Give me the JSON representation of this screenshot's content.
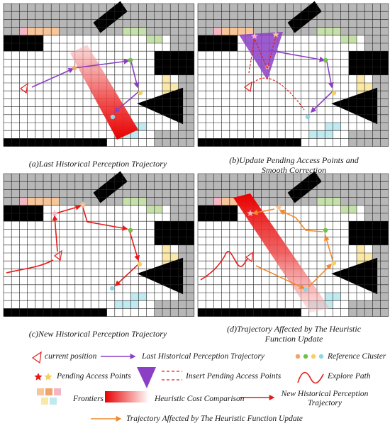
{
  "panels": [
    {
      "id": "a",
      "caption_line1": "(a)Last Historical Perception Trajectory",
      "caption_line2": ""
    },
    {
      "id": "b",
      "caption_line1": "(b)Update Pending Access Points and",
      "caption_line2": "Smooth Correction"
    },
    {
      "id": "c",
      "caption_line1": "(c)New Historical Perception Trajectory",
      "caption_line2": ""
    },
    {
      "id": "d",
      "caption_line1": "(d)Trajectory Affected by The Heuristic",
      "caption_line2": "Function Update"
    }
  ],
  "legend": {
    "current_position": "current position",
    "last_trajectory": "Last Historical Perception Trajectory",
    "reference_cluster": "Reference Cluster",
    "pending_access_points": "Pending Access Points",
    "insert_pending_access_points": "Insert Pending Access Points",
    "explore_path": "Explore Path",
    "frontiers": "Frontiers",
    "heuristic_cost": "Heuristic Cost Comparison",
    "new_trajectory_line1": "New Historical Perception",
    "new_trajectory_line2": "Trajectory",
    "affected_trajectory": "Trajectory Affected by The Heuristic Function Update"
  },
  "colors": {
    "grid_line": "#222222",
    "unknown_cell": "#b7b7b7",
    "obstacle": "#000000",
    "purple": "#8b3fc4",
    "red": "#e51b1b",
    "orange": "#f08a2c",
    "frontier_pink": "#f4b6c2",
    "frontier_orange": "#f7c59a",
    "frontier_green": "#c6e0a9",
    "frontier_yellow": "#fbe8a6",
    "frontier_cyan": "#bfeaf0",
    "cluster_orange": "#f0a36a",
    "cluster_green": "#6fbf4a",
    "cluster_yellow": "#f6cf62",
    "cluster_cyan": "#8fd6e0"
  }
}
